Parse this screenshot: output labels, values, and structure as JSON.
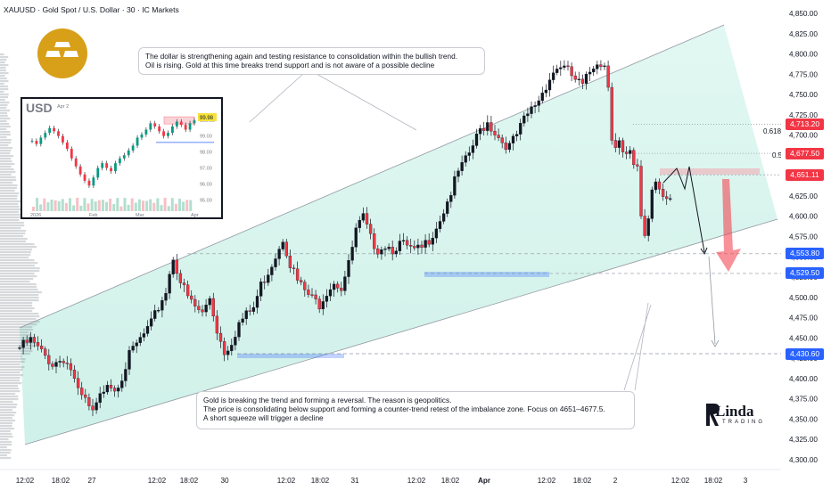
{
  "header": {
    "symbol_title": "XAUUSD · Gold Spot / U.S. Dollar · 30 · IC Markets"
  },
  "chart_data": {
    "type": "candlestick",
    "symbol": "XAUUSD",
    "timeframe": "30",
    "broker": "IC Markets",
    "y_axis": {
      "range": [
        4293,
        4860
      ],
      "ticks": [
        "4,850.00",
        "4,825.00",
        "4,800.00",
        "4,775.00",
        "4,750.00",
        "4,725.00",
        "4,700.00",
        "4,675.00",
        "4,650.00",
        "4,625.00",
        "4,600.00",
        "4,575.00",
        "4,550.00",
        "4,525.00",
        "4,500.00",
        "4,475.00",
        "4,450.00",
        "4,425.00",
        "4,400.00",
        "4,375.00",
        "4,350.00",
        "4,325.00",
        "4,300.00"
      ]
    },
    "x_axis": {
      "ticks": [
        "12:02",
        "18:02",
        "27",
        "12:02",
        "18:02",
        "30",
        "12:02",
        "18:02",
        "31",
        "12:02",
        "18:02",
        "Apr",
        "12:02",
        "18:02",
        "2",
        "12:02",
        "18:02",
        "3"
      ],
      "bold_ticks": [
        "Apr"
      ]
    },
    "price_tags": [
      {
        "label": "4,713.20",
        "value": 4713.2,
        "color": "#f23645"
      },
      {
        "label": "4,677.50",
        "value": 4677.5,
        "color": "#f23645"
      },
      {
        "label": "4,651.11",
        "value": 4651.11,
        "color": "#f23645"
      },
      {
        "label": "4,553.80",
        "value": 4553.8,
        "color": "#2962ff"
      },
      {
        "label": "4,529.50",
        "value": 4529.5,
        "color": "#2962ff"
      },
      {
        "label": "4,430.60",
        "value": 4430.6,
        "color": "#2962ff"
      }
    ],
    "fib_levels": [
      {
        "label": "0.618",
        "value": 4709
      },
      {
        "label": "0.5",
        "value": 4678
      }
    ],
    "price_path": [
      [
        0,
        4438
      ],
      [
        3,
        4447
      ],
      [
        6,
        4432
      ],
      [
        9,
        4418
      ],
      [
        12,
        4425
      ],
      [
        14,
        4412
      ],
      [
        16,
        4382
      ],
      [
        18,
        4372
      ],
      [
        20,
        4356
      ],
      [
        22,
        4377
      ],
      [
        24,
        4398
      ],
      [
        26,
        4388
      ],
      [
        28,
        4403
      ],
      [
        30,
        4428
      ],
      [
        32,
        4442
      ],
      [
        34,
        4454
      ],
      [
        36,
        4467
      ],
      [
        38,
        4488
      ],
      [
        40,
        4508
      ],
      [
        42,
        4550
      ],
      [
        44,
        4520
      ],
      [
        46,
        4500
      ],
      [
        48,
        4488
      ],
      [
        50,
        4480
      ],
      [
        52,
        4500
      ],
      [
        54,
        4460
      ],
      [
        56,
        4433
      ],
      [
        58,
        4446
      ],
      [
        60,
        4468
      ],
      [
        62,
        4478
      ],
      [
        64,
        4487
      ],
      [
        66,
        4515
      ],
      [
        68,
        4532
      ],
      [
        70,
        4552
      ],
      [
        72,
        4574
      ],
      [
        74,
        4542
      ],
      [
        76,
        4520
      ],
      [
        78,
        4508
      ],
      [
        80,
        4498
      ],
      [
        82,
        4492
      ],
      [
        84,
        4508
      ],
      [
        86,
        4520
      ],
      [
        88,
        4512
      ],
      [
        90,
        4540
      ],
      [
        92,
        4582
      ],
      [
        94,
        4598
      ],
      [
        96,
        4572
      ],
      [
        98,
        4560
      ],
      [
        100,
        4565
      ],
      [
        102,
        4560
      ],
      [
        104,
        4566
      ],
      [
        106,
        4562
      ],
      [
        108,
        4556
      ],
      [
        110,
        4560
      ],
      [
        112,
        4572
      ],
      [
        114,
        4588
      ],
      [
        116,
        4607
      ],
      [
        118,
        4630
      ],
      [
        120,
        4654
      ],
      [
        122,
        4668
      ],
      [
        124,
        4687
      ],
      [
        126,
        4706
      ],
      [
        128,
        4716
      ],
      [
        130,
        4704
      ],
      [
        132,
        4692
      ],
      [
        134,
        4686
      ],
      [
        136,
        4700
      ],
      [
        138,
        4718
      ],
      [
        140,
        4732
      ],
      [
        142,
        4744
      ],
      [
        144,
        4762
      ],
      [
        146,
        4778
      ],
      [
        148,
        4786
      ],
      [
        150,
        4778
      ],
      [
        152,
        4768
      ],
      [
        154,
        4760
      ],
      [
        156,
        4778
      ],
      [
        158,
        4792
      ],
      [
        160,
        4786
      ],
      [
        161,
        4762
      ],
      [
        162,
        4700
      ],
      [
        163,
        4688
      ],
      [
        164,
        4692
      ],
      [
        165,
        4676
      ],
      [
        166,
        4672
      ],
      [
        167,
        4676
      ],
      [
        168,
        4660
      ],
      [
        169,
        4657
      ],
      [
        170,
        4600
      ],
      [
        171,
        4578
      ],
      [
        172,
        4598
      ],
      [
        173,
        4634
      ],
      [
        174,
        4646
      ],
      [
        175,
        4636
      ],
      [
        176,
        4630
      ],
      [
        177,
        4626
      ],
      [
        178,
        4622
      ]
    ],
    "series": [
      {
        "name": "Volume profile (left)"
      },
      {
        "name": "Ascending channel"
      }
    ],
    "annotations": {
      "top_note": [
        "The dollar is strengthening again and testing resistance to consolidation within the bullish trend.",
        "Oil is rising. Gold at this time breaks trend support and is not aware of a possible decline"
      ],
      "bottom_note": [
        "Gold is breaking the trend and forming a reversal. The reason is geopolitics.",
        "The price is consolidating below support and forming a counter-trend retest of the imbalance zone. Focus on 4651–4677.5.",
        "A short squeeze will trigger a decline"
      ]
    },
    "inset": {
      "title": "USD",
      "date_label": "Apr 2",
      "x_ticks": [
        "2026",
        "Feb",
        "Mar",
        "Apr"
      ],
      "y_ticks": [
        "100.00",
        "99.00",
        "98.00",
        "97.00",
        "96.00",
        "95.00"
      ],
      "price_label": "99.98",
      "ylim": [
        94.8,
        100.6
      ],
      "values": [
        98.7,
        98.5,
        98.9,
        99.2,
        99.5,
        99.3,
        99.0,
        98.6,
        98.2,
        97.6,
        97.1,
        96.6,
        96.2,
        95.9,
        96.4,
        97.0,
        97.3,
        97.0,
        96.8,
        97.3,
        97.6,
        97.8,
        98.1,
        98.4,
        98.9,
        99.1,
        99.4,
        99.8,
        99.6,
        99.3,
        99.0,
        99.2,
        99.6,
        99.9,
        99.7,
        99.4,
        99.8,
        99.98
      ]
    }
  },
  "watermark": {
    "name": "Linda",
    "tagline": "TRADING"
  },
  "colors": {
    "bull": "#089981",
    "bear": "#f23645",
    "candle_up_body": "#089981",
    "channel": "#9098a1",
    "channel_fill": "#bfece1",
    "support_zone": "#2962ff",
    "resistance_zone": "#f5b8c0",
    "arrow": "#f23645",
    "logo_badge": "#d8a018"
  }
}
